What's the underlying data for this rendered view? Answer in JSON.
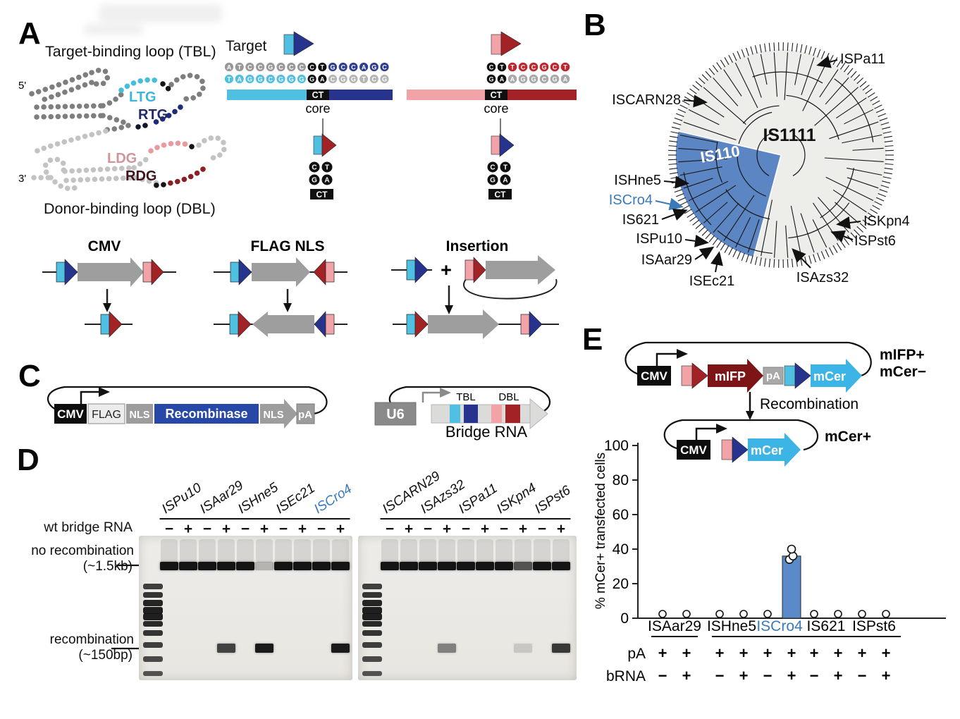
{
  "panelA": {
    "label": "A",
    "tbl_title": "Target-binding loop (TBL)",
    "dbl_title": "Donor-binding loop (DBL)",
    "five_prime": "5'",
    "three_prime": "3'",
    "ltg": "LTG",
    "rtg": "RTG",
    "ldg": "LDG",
    "rdg": "RDG",
    "target_label": "Target",
    "core_label": "core",
    "left_target": {
      "flank_top": "ATCCGCCC",
      "core_top": "CT",
      "right_top": "GCCAGC",
      "flank_bottom": "TAGGCGGG",
      "core_bottom": "GA",
      "right_bottom": "CGGTCG"
    },
    "right_target": {
      "core_top": "CT",
      "right_top": "TCCGCT",
      "core_bottom": "GA",
      "right_bottom": "AGGCGA"
    },
    "recombined_core": {
      "top": "CT",
      "bottom": "GA",
      "box": "CT"
    },
    "reactions": {
      "excision_title": "CMV",
      "inversion_title": "FLAG NLS",
      "insertion_title": "Insertion",
      "plus_sign": "+"
    }
  },
  "panelB": {
    "label": "B",
    "family_main": "IS1111",
    "family_highlight": "IS110",
    "labels": {
      "ispa11": "ISPa11",
      "iscarn28": "ISCARN28",
      "ishne5": "ISHne5",
      "iscro4": "ISCro4",
      "is621": "IS621",
      "ispu10": "ISPu10",
      "isaar29": "ISAar29",
      "isec21": "ISEc21",
      "isazs32": "ISAzs32",
      "iskpn4": "ISKpn4",
      "ispst6": "ISPst6"
    },
    "highlight_color": "#3a7ab8"
  },
  "panelC": {
    "label": "C",
    "cmv": "CMV",
    "flag": "FLAG",
    "nls1": "NLS",
    "recombinase": "Recombinase",
    "nls2": "NLS",
    "pa": "pA",
    "u6": "U6",
    "tbl": "TBL",
    "dbl": "DBL",
    "bridge_rna": "Bridge RNA"
  },
  "panelD": {
    "label": "D",
    "row_label": "wt bridge RNA",
    "minus": "−",
    "plus": "+",
    "left_gel": {
      "lanes": [
        "ISPu10",
        "ISAar29",
        "ISHne5",
        "ISEc21",
        "ISCro4"
      ],
      "highlight": "ISCro4",
      "top_bands": [
        1,
        1,
        1,
        1,
        1,
        0.25,
        1,
        1,
        1,
        1
      ],
      "bottom_bands": [
        0,
        0,
        0,
        0.8,
        0,
        1,
        0,
        0,
        0,
        1
      ]
    },
    "right_gel": {
      "lanes": [
        "ISCARN29",
        "ISAzs32",
        "ISPa11",
        "ISKpn4",
        "ISPst6"
      ],
      "top_bands": [
        1,
        1,
        1,
        1,
        1,
        1,
        1,
        0.7,
        1,
        1
      ],
      "bottom_bands": [
        0,
        0,
        0,
        0.5,
        0,
        0,
        0,
        0.15,
        0,
        0.85
      ]
    },
    "annotations": {
      "no_recomb": "no recombination",
      "no_recomb_size": "(~1.5kb)",
      "recomb": "recombination",
      "recomb_size": "(~150bp)"
    }
  },
  "panelE": {
    "label": "E",
    "cmv": "CMV",
    "mifp": "mIFP",
    "pa": "pA",
    "mcer": "mCer",
    "state_mifp": "mIFP+",
    "state_mcer_neg": "mCer−",
    "recombination_label": "Recombination",
    "state_mcer_pos": "mCer+"
  },
  "chart_data": {
    "type": "bar",
    "ylabel": "% mCer+ transfected cells",
    "ylim": [
      0,
      100
    ],
    "yticks": [
      0,
      20,
      40,
      60,
      80,
      100
    ],
    "groups": [
      "ISAar29",
      "ISHne5",
      "ISCro4",
      "IS621",
      "ISPst6"
    ],
    "highlight_group": "ISCro4",
    "categories": [
      "ISAar29 bRNA−",
      "ISAar29 bRNA+",
      "ISHne5 bRNA−",
      "ISHne5 bRNA+",
      "ISCro4 bRNA−",
      "ISCro4 bRNA+",
      "IS621 bRNA−",
      "IS621 bRNA+",
      "ISPst6 bRNA−",
      "ISPst6 bRNA+"
    ],
    "values": [
      0,
      0,
      0,
      0,
      0,
      36,
      0,
      0,
      0,
      0
    ],
    "replicate_points": {
      "ISCro4 bRNA+": [
        34,
        36,
        40
      ]
    },
    "condition_rows": {
      "pA": [
        "+",
        "+",
        "+",
        "+",
        "+",
        "+",
        "+",
        "+",
        "+",
        "+"
      ],
      "bRNA": [
        "−",
        "+",
        "−",
        "+",
        "−",
        "+",
        "−",
        "+",
        "−",
        "+"
      ]
    },
    "bar_color": "#5b8ac9",
    "grid": false,
    "legend": null
  },
  "colors": {
    "cyan": "#4fc0e2",
    "navy": "#26348e",
    "royal": "#2e3f93",
    "pink": "#f2a3a8",
    "dark_red": "#a32226",
    "crimson": "#c0272d",
    "maroon": "#7d1416",
    "recombinase_blue": "#2848a8",
    "wedge_blue": "#5b86c3",
    "bar_blue": "#5b8ac9",
    "iscro4_blue": "#3a7ab8",
    "gray_arrow": "#9e9e9e"
  }
}
